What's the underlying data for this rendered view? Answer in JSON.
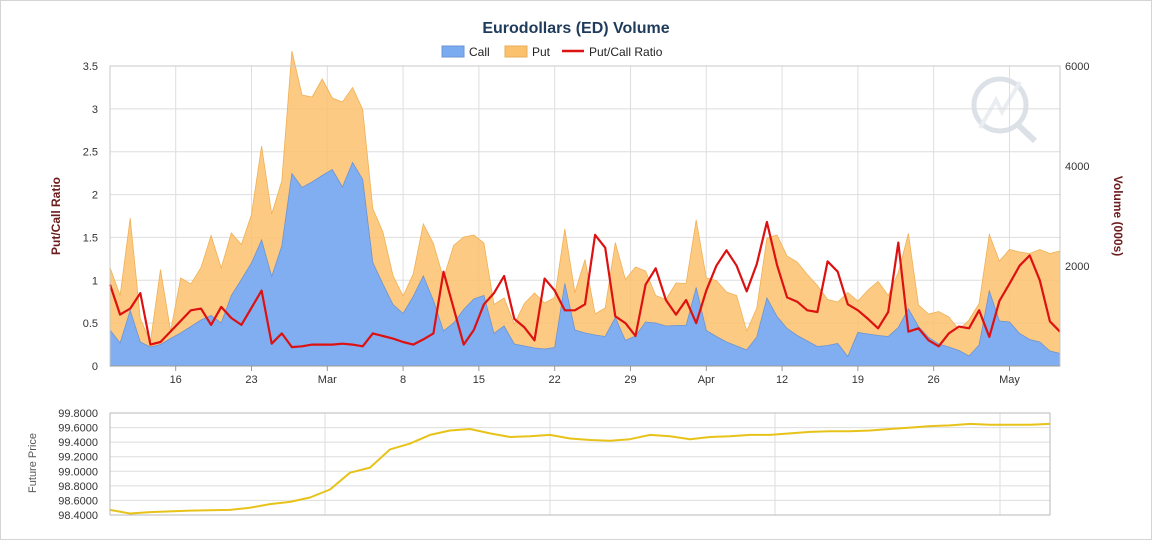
{
  "chart_data": [
    {
      "type": "area",
      "title": "Eurodollars (ED) Volume",
      "ylabel_left": "Put/Call Ratio",
      "ylabel_right": "Volume (000s)",
      "y_left_ticks": [
        "0",
        "0.5",
        "1",
        "1.5",
        "2",
        "2.5",
        "3",
        "3.5"
      ],
      "y_left_range": [
        0,
        3.5
      ],
      "y_right_ticks": [
        "2000",
        "4000",
        "6000"
      ],
      "y_right_range": [
        0,
        6000
      ],
      "x_ticks": [
        "16",
        "23",
        "Mar",
        "8",
        "15",
        "22",
        "29",
        "Apr",
        "12",
        "19",
        "26",
        "May"
      ],
      "x_range": [
        0,
        94
      ],
      "x_tick_positions": [
        6.5,
        14,
        21.5,
        29,
        36.5,
        44,
        51.5,
        59,
        66.5,
        74,
        81.5,
        89
      ],
      "legend": [
        "Call",
        "Put",
        "Put/Call Ratio"
      ],
      "legend_position": "top-center",
      "grid": true,
      "colors": {
        "call": "#7aaaf0",
        "put": "#fbc16c",
        "ratio": "#dd1111",
        "future": "#e7c31a"
      },
      "series": [
        {
          "name": "Call",
          "axis": "right",
          "x": [
            0,
            1,
            2,
            3,
            4,
            5,
            6,
            7,
            8,
            9,
            10,
            11,
            12,
            13,
            14,
            15,
            16,
            17,
            18,
            19,
            20,
            21,
            22,
            23,
            24,
            25,
            26,
            27,
            28,
            29,
            30,
            31,
            32,
            33,
            34,
            35,
            36,
            37,
            38,
            39,
            40,
            41,
            42,
            43,
            44,
            45,
            46,
            47,
            48,
            49,
            50,
            51,
            52,
            53,
            54,
            55,
            56,
            57,
            58,
            59,
            60,
            61,
            62,
            63,
            64,
            65,
            66,
            67,
            68,
            69,
            70,
            71,
            72,
            73,
            74,
            75,
            76,
            77,
            78,
            79,
            80,
            81,
            82,
            83,
            84,
            85,
            86,
            87,
            88,
            89,
            90,
            91,
            92,
            93,
            94
          ],
          "values": [
            720,
            460,
            1110,
            480,
            380,
            430,
            550,
            660,
            790,
            920,
            1010,
            860,
            1410,
            1730,
            2060,
            2520,
            1790,
            2400,
            3850,
            3570,
            3680,
            3810,
            3930,
            3580,
            4070,
            3730,
            2070,
            1640,
            1230,
            1050,
            1390,
            1800,
            1310,
            700,
            860,
            1130,
            1340,
            1410,
            650,
            800,
            440,
            400,
            360,
            340,
            370,
            1650,
            720,
            660,
            620,
            590,
            970,
            510,
            600,
            880,
            860,
            800,
            810,
            810,
            1570,
            710,
            590,
            480,
            400,
            320,
            580,
            1360,
            990,
            750,
            610,
            500,
            390,
            410,
            450,
            190,
            670,
            640,
            610,
            590,
            770,
            1140,
            790,
            570,
            440,
            380,
            310,
            200,
            420,
            1500,
            900,
            880,
            650,
            530,
            480,
            300,
            250
          ]
        },
        {
          "name": "Put",
          "axis": "right",
          "x": [
            0,
            1,
            2,
            3,
            4,
            5,
            6,
            7,
            8,
            9,
            10,
            11,
            12,
            13,
            14,
            15,
            16,
            17,
            18,
            19,
            20,
            21,
            22,
            23,
            24,
            25,
            26,
            27,
            28,
            29,
            30,
            31,
            32,
            33,
            34,
            35,
            36,
            37,
            38,
            39,
            40,
            41,
            42,
            43,
            44,
            45,
            46,
            47,
            48,
            49,
            50,
            51,
            52,
            53,
            54,
            55,
            56,
            57,
            58,
            59,
            60,
            61,
            62,
            63,
            64,
            65,
            66,
            67,
            68,
            69,
            70,
            71,
            72,
            73,
            74,
            75,
            76,
            77,
            78,
            79,
            80,
            81,
            82,
            83,
            84,
            85,
            86,
            87,
            88,
            89,
            90,
            91,
            92,
            93,
            94
          ],
          "values": [
            1250,
            950,
            1850,
            470,
            100,
            1500,
            150,
            1100,
            850,
            1050,
            1600,
            1100,
            1250,
            700,
            970,
            1880,
            1250,
            1300,
            2450,
            1850,
            1700,
            1930,
            1430,
            1700,
            1500,
            1400,
            1080,
            1040,
            580,
            350,
            450,
            1040,
            1140,
            1050,
            1550,
            1450,
            1280,
            1050,
            580,
            560,
            400,
            850,
            1100,
            920,
            1000,
            1090,
            750,
            1470,
            420,
            570,
            1500,
            1220,
            1380,
            1020,
            550,
            530,
            850,
            840,
            1350,
            1050,
            1120,
            1000,
            1010,
            380,
            580,
            1200,
            1630,
            1450,
            1470,
            1330,
            1220,
            920,
            830,
            1280,
            630,
            880,
            1080,
            820,
            1100,
            1510,
            430,
            470,
            650,
            600,
            420,
            720,
            830,
            1130,
            1200,
            1450,
            1630,
            1720,
            1850,
            1950,
            2050
          ]
        },
        {
          "name": "Put/Call Ratio",
          "axis": "left",
          "x": [
            0,
            1,
            2,
            3,
            4,
            5,
            8,
            9,
            10,
            11,
            12,
            13,
            15,
            16,
            17,
            18,
            19,
            20,
            21,
            22,
            23,
            24,
            25,
            26,
            27,
            28,
            29,
            30,
            31,
            32,
            33,
            35,
            36,
            37,
            38,
            39,
            40,
            41,
            42,
            43,
            44,
            45,
            46,
            47,
            48,
            49,
            50,
            51,
            52,
            53,
            54,
            55,
            56,
            57,
            58,
            59,
            60,
            61,
            62,
            63,
            64,
            65,
            66,
            67,
            68,
            69,
            70,
            71,
            72,
            73,
            74,
            75,
            76,
            77,
            78,
            79,
            80,
            81,
            82,
            83,
            84,
            85,
            86,
            87,
            88,
            89,
            90,
            91,
            92,
            93,
            94
          ],
          "values": [
            0.95,
            0.6,
            0.67,
            0.85,
            0.25,
            0.28,
            0.65,
            0.67,
            0.48,
            0.69,
            0.56,
            0.48,
            0.88,
            0.26,
            0.38,
            0.22,
            0.23,
            0.25,
            0.25,
            0.25,
            0.26,
            0.25,
            0.23,
            0.38,
            0.35,
            0.32,
            0.28,
            0.25,
            0.31,
            0.38,
            1.1,
            0.25,
            0.42,
            0.72,
            0.85,
            1.05,
            0.55,
            0.45,
            0.3,
            1.02,
            0.88,
            0.65,
            0.65,
            0.72,
            1.53,
            1.38,
            0.58,
            0.5,
            0.35,
            0.95,
            1.14,
            0.77,
            0.6,
            0.77,
            0.5,
            0.88,
            1.17,
            1.35,
            1.17,
            0.87,
            1.19,
            1.68,
            1.18,
            0.8,
            0.75,
            0.65,
            0.63,
            1.22,
            1.1,
            0.72,
            0.65,
            0.55,
            0.44,
            0.63,
            1.44,
            0.4,
            0.44,
            0.3,
            0.23,
            0.38,
            0.46,
            0.44,
            0.65,
            0.34,
            0.76,
            0.96,
            1.17,
            1.29,
            1.0,
            0.52,
            0.4
          ]
        }
      ]
    },
    {
      "type": "line",
      "ylabel": "Future Price",
      "y_ticks": [
        "98.4000",
        "98.6000",
        "98.8000",
        "99.0000",
        "99.2000",
        "99.4000",
        "99.6000",
        "99.8000"
      ],
      "y_range": [
        98.4,
        99.8
      ],
      "x_range": [
        0,
        94
      ],
      "grid": true,
      "series": [
        {
          "name": "Future Price",
          "x": [
            0,
            2,
            4,
            8,
            12,
            14,
            16,
            18,
            20,
            22,
            24,
            26,
            28,
            30,
            32,
            34,
            36,
            38,
            40,
            42,
            44,
            46,
            48,
            50,
            52,
            54,
            56,
            58,
            60,
            62,
            64,
            66,
            68,
            70,
            72,
            74,
            76,
            78,
            80,
            82,
            84,
            86,
            88,
            90,
            92,
            94
          ],
          "values": [
            98.47,
            98.42,
            98.44,
            98.46,
            98.47,
            98.5,
            98.55,
            98.58,
            98.64,
            98.75,
            98.98,
            99.05,
            99.3,
            99.38,
            99.5,
            99.56,
            99.58,
            99.52,
            99.47,
            99.48,
            99.5,
            99.45,
            99.43,
            99.42,
            99.44,
            99.5,
            99.48,
            99.44,
            99.47,
            99.48,
            99.5,
            99.5,
            99.52,
            99.54,
            99.55,
            99.55,
            99.56,
            99.58,
            99.6,
            99.62,
            99.63,
            99.65,
            99.64,
            99.64,
            99.64,
            99.65
          ]
        }
      ]
    }
  ]
}
